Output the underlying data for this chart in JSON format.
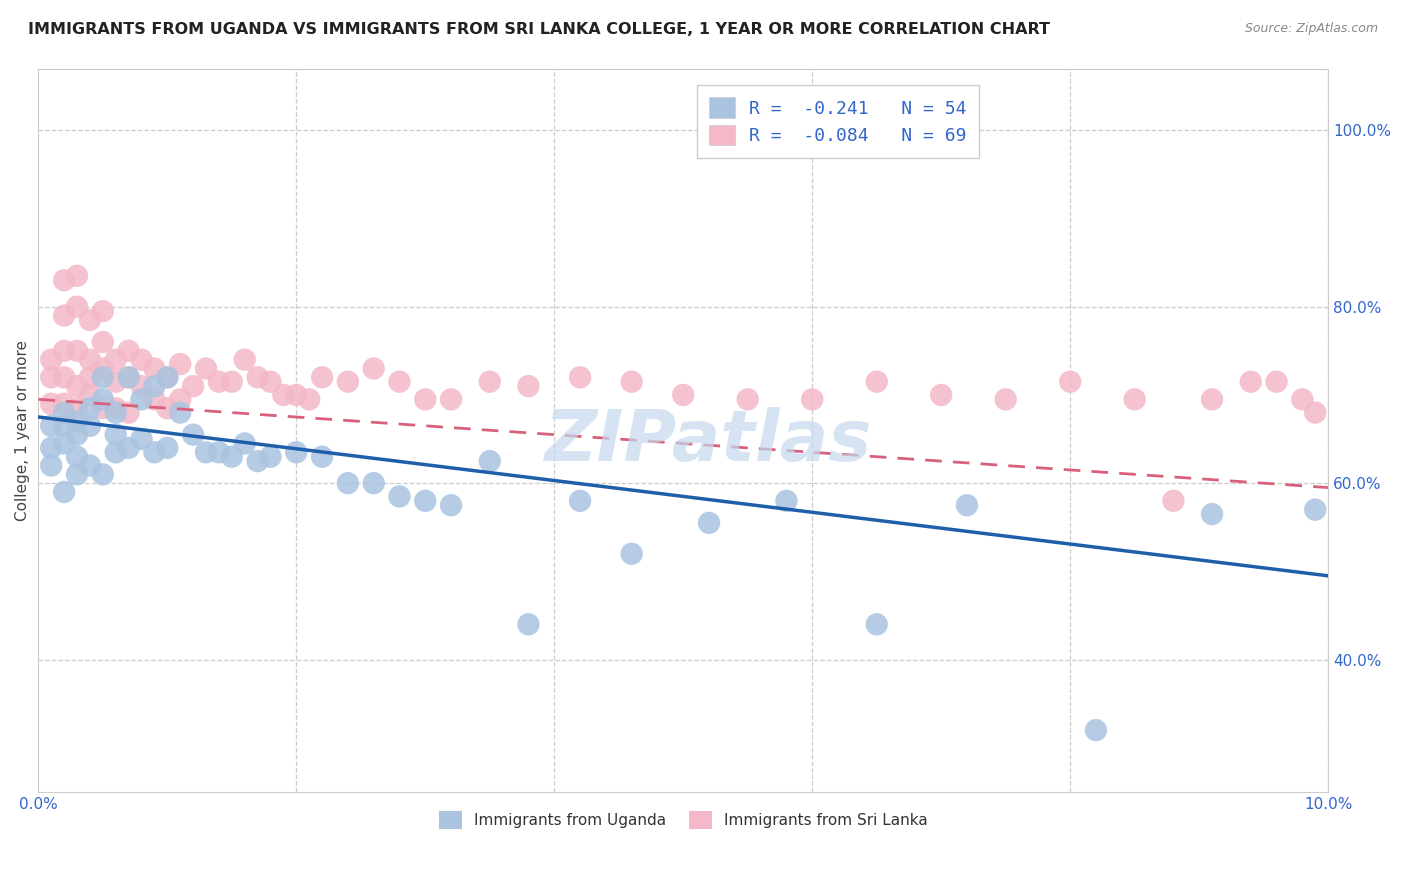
{
  "title": "IMMIGRANTS FROM UGANDA VS IMMIGRANTS FROM SRI LANKA COLLEGE, 1 YEAR OR MORE CORRELATION CHART",
  "source": "Source: ZipAtlas.com",
  "ylabel": "College, 1 year or more",
  "xlim": [
    0.0,
    0.1
  ],
  "ylim": [
    0.25,
    1.07
  ],
  "R_uganda": -0.241,
  "N_uganda": 54,
  "R_srilanka": -0.084,
  "N_srilanka": 69,
  "color_uganda": "#aac4e0",
  "color_srilanka": "#f4b8c8",
  "line_color_uganda": "#1f5faa",
  "line_color_srilanka": "#d9607a",
  "ug_line_x0": 0.0,
  "ug_line_y0": 0.675,
  "ug_line_x1": 0.1,
  "ug_line_y1": 0.495,
  "sl_line_x0": 0.0,
  "sl_line_y0": 0.695,
  "sl_line_x1": 0.1,
  "sl_line_y1": 0.595,
  "watermark": "ZIPatlas",
  "watermark_color": "#c5d8ee",
  "uganda_x": [
    0.001,
    0.001,
    0.001,
    0.002,
    0.002,
    0.002,
    0.002,
    0.003,
    0.003,
    0.003,
    0.003,
    0.004,
    0.004,
    0.004,
    0.005,
    0.005,
    0.005,
    0.006,
    0.006,
    0.006,
    0.007,
    0.007,
    0.008,
    0.008,
    0.009,
    0.009,
    0.01,
    0.01,
    0.011,
    0.012,
    0.013,
    0.014,
    0.015,
    0.016,
    0.017,
    0.018,
    0.02,
    0.022,
    0.024,
    0.026,
    0.028,
    0.03,
    0.032,
    0.035,
    0.038,
    0.042,
    0.046,
    0.052,
    0.058,
    0.065,
    0.072,
    0.082,
    0.091,
    0.099
  ],
  "uganda_y": [
    0.665,
    0.64,
    0.62,
    0.68,
    0.665,
    0.645,
    0.59,
    0.67,
    0.655,
    0.63,
    0.61,
    0.685,
    0.665,
    0.62,
    0.72,
    0.695,
    0.61,
    0.68,
    0.655,
    0.635,
    0.72,
    0.64,
    0.695,
    0.65,
    0.71,
    0.635,
    0.72,
    0.64,
    0.68,
    0.655,
    0.635,
    0.635,
    0.63,
    0.645,
    0.625,
    0.63,
    0.635,
    0.63,
    0.6,
    0.6,
    0.585,
    0.58,
    0.575,
    0.625,
    0.44,
    0.58,
    0.52,
    0.555,
    0.58,
    0.44,
    0.575,
    0.32,
    0.565,
    0.57
  ],
  "srilanka_x": [
    0.001,
    0.001,
    0.001,
    0.002,
    0.002,
    0.002,
    0.002,
    0.002,
    0.003,
    0.003,
    0.003,
    0.003,
    0.003,
    0.004,
    0.004,
    0.004,
    0.004,
    0.005,
    0.005,
    0.005,
    0.005,
    0.006,
    0.006,
    0.006,
    0.007,
    0.007,
    0.007,
    0.008,
    0.008,
    0.009,
    0.009,
    0.01,
    0.01,
    0.011,
    0.011,
    0.012,
    0.013,
    0.014,
    0.015,
    0.016,
    0.017,
    0.018,
    0.019,
    0.02,
    0.021,
    0.022,
    0.024,
    0.026,
    0.028,
    0.03,
    0.032,
    0.035,
    0.038,
    0.042,
    0.046,
    0.05,
    0.055,
    0.06,
    0.065,
    0.07,
    0.075,
    0.08,
    0.085,
    0.088,
    0.091,
    0.094,
    0.096,
    0.098,
    0.099
  ],
  "srilanka_y": [
    0.74,
    0.72,
    0.69,
    0.83,
    0.79,
    0.75,
    0.72,
    0.69,
    0.835,
    0.8,
    0.75,
    0.71,
    0.685,
    0.785,
    0.74,
    0.72,
    0.7,
    0.795,
    0.76,
    0.73,
    0.685,
    0.74,
    0.715,
    0.685,
    0.75,
    0.72,
    0.68,
    0.74,
    0.71,
    0.73,
    0.695,
    0.72,
    0.685,
    0.735,
    0.695,
    0.71,
    0.73,
    0.715,
    0.715,
    0.74,
    0.72,
    0.715,
    0.7,
    0.7,
    0.695,
    0.72,
    0.715,
    0.73,
    0.715,
    0.695,
    0.695,
    0.715,
    0.71,
    0.72,
    0.715,
    0.7,
    0.695,
    0.695,
    0.715,
    0.7,
    0.695,
    0.715,
    0.695,
    0.58,
    0.695,
    0.715,
    0.715,
    0.695,
    0.68
  ]
}
